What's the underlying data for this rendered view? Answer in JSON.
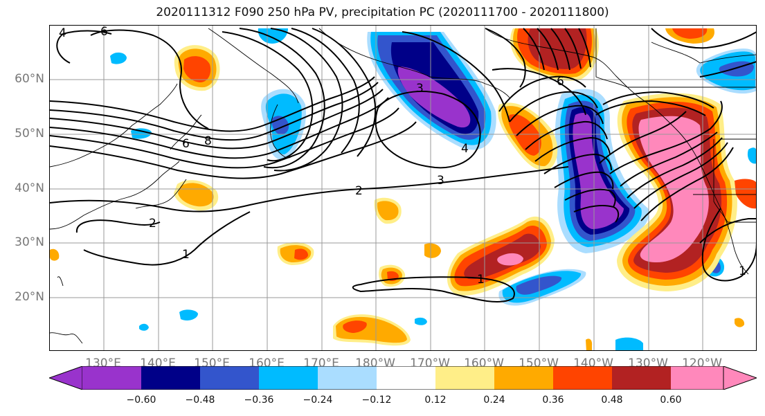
{
  "title": "2020111312 F090 250 hPa PV, precipitation PC (2020111700 - 2020111800)",
  "lat_labels": [
    "60°N",
    "50°N",
    "40°N",
    "30°N",
    "20°N"
  ],
  "lon_labels": [
    "130°E",
    "140°E",
    "150°E",
    "160°E",
    "170°E",
    "180°W",
    "170°W",
    "160°W",
    "150°W",
    "140°W",
    "130°W",
    "120°W"
  ],
  "colorbar": {
    "tick_labels": [
      "−0.60",
      "−0.48",
      "−0.36",
      "−0.24",
      "−0.12",
      "0.12",
      "0.24",
      "0.36",
      "0.48",
      "0.60"
    ],
    "colors": [
      "#9933cc",
      "#000088",
      "#3355cc",
      "#00bbff",
      "#aaddff",
      "#ffffff",
      "#ffee88",
      "#ffaa00",
      "#ff4400",
      "#b22222",
      "#ff88bb"
    ]
  },
  "contour_labels": [
    "1",
    "2",
    "3",
    "4",
    "6",
    "8"
  ],
  "colors": {
    "grid": "#999999",
    "coast": "#000000",
    "contour": "#000000"
  }
}
